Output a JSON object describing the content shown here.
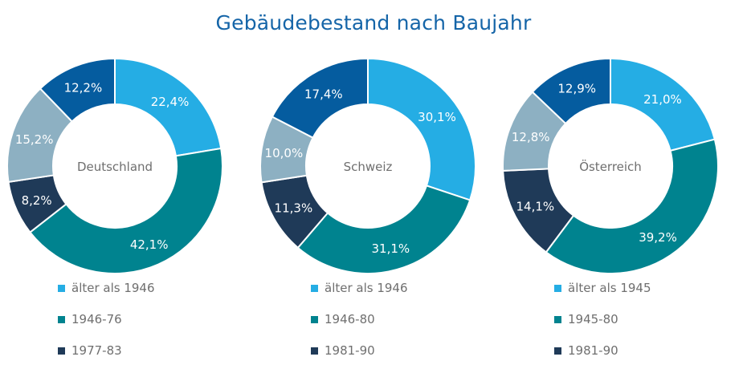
{
  "title": "Gebäudebestand nach Baujahr",
  "chart_data": [
    {
      "type": "donut",
      "center_label": "Deutschland",
      "categories": [
        "älter als 1946",
        "1946-76",
        "1977-83",
        "",
        ""
      ],
      "values": [
        22.4,
        42.1,
        8.2,
        15.2,
        12.2
      ],
      "data_labels": [
        "22,4%",
        "42,1%",
        "8,2%",
        "15,2%",
        "12,2%"
      ],
      "legend": [
        "älter als 1946",
        "1946-76",
        "1977-83"
      ]
    },
    {
      "type": "donut",
      "center_label": "Schweiz",
      "categories": [
        "älter als 1946",
        "1946-80",
        "1981-90",
        "",
        ""
      ],
      "values": [
        30.1,
        31.1,
        11.3,
        10.0,
        17.4
      ],
      "data_labels": [
        "30,1%",
        "31,1%",
        "11,3%",
        "10,0%",
        "17,4%"
      ],
      "legend": [
        "älter als 1946",
        "1946-80",
        "1981-90"
      ]
    },
    {
      "type": "donut",
      "center_label": "Österreich",
      "categories": [
        "älter als 1945",
        "1945-80",
        "1981-90",
        "",
        ""
      ],
      "values": [
        21.0,
        39.2,
        14.1,
        12.8,
        12.9
      ],
      "data_labels": [
        "21,0%",
        "39,2%",
        "14,1%",
        "12,8%",
        "12,9%"
      ],
      "legend": [
        "älter als 1945",
        "1945-80",
        "1981-90"
      ]
    }
  ],
  "colors": [
    "#25ade4",
    "#00838f",
    "#1f3a58",
    "#8db0c2",
    "#055c9f"
  ],
  "legend_placement": "bottom"
}
